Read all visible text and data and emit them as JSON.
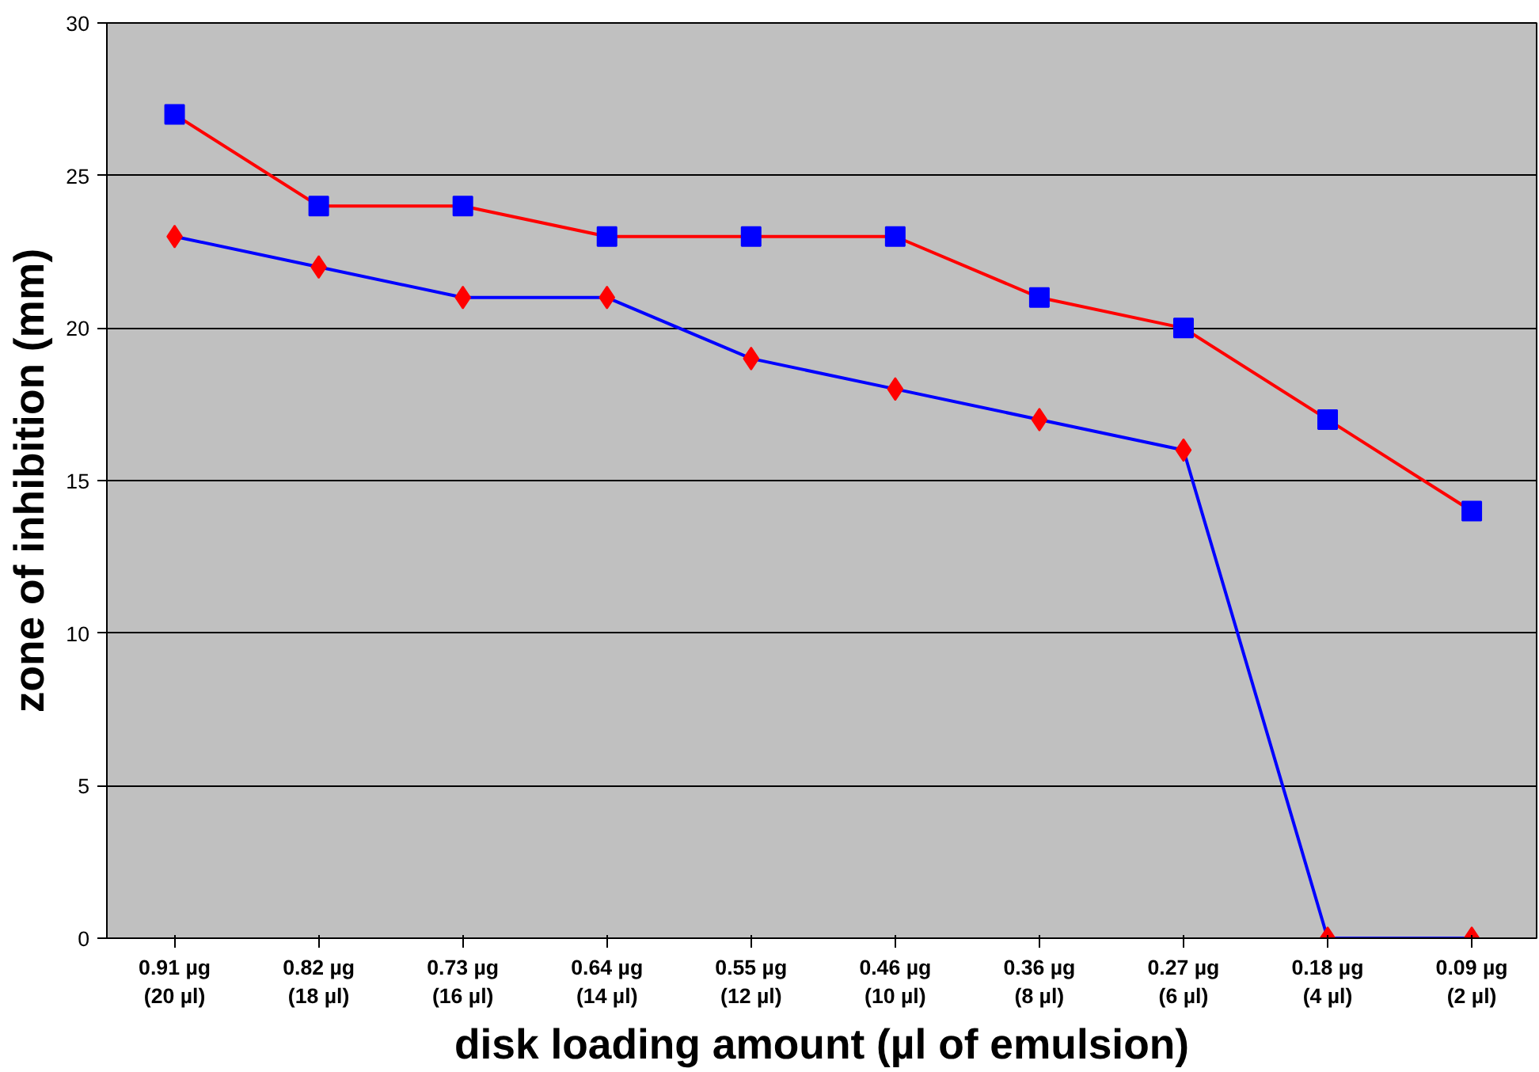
{
  "chart_data": {
    "type": "line",
    "xlabel": "disk loading amount (µl of emulsion)",
    "ylabel": "zone of inhibition (mm)",
    "categories": [
      "0.91 µg\n(20 µl)",
      "0.82 µg\n(18 µl)",
      "0.73 µg\n(16 µl)",
      "0.64 µg\n(14 µl)",
      "0.55 µg\n(12 µl)",
      "0.46 µg\n(10 µl)",
      "0.36 µg\n(8 µl)",
      "0.27 µg\n(6 µl)",
      "0.18 µg\n(4 µl)",
      "0.09 µg\n(2 µl)"
    ],
    "series": [
      {
        "color": "#ff0000",
        "marker": "square",
        "colors": [
          "#0000ff",
          "#0000ff",
          "#0000ff",
          "#0000ff",
          "#0000ff",
          "#0000ff",
          "#0000ff",
          "#0000ff",
          "#0000ff",
          "#0000ff"
        ],
        "values": [
          27,
          24,
          24,
          23,
          23,
          23,
          21,
          20,
          17,
          14
        ]
      },
      {
        "color": "#0000ff",
        "marker": "diamond",
        "colors": [
          "#ff0000",
          "#ff0000",
          "#ff0000",
          "#ff0000",
          "#ff0000",
          "#ff0000",
          "#ff0000",
          "#ff0000",
          "#ff0000",
          "#ff0000"
        ],
        "values": [
          23,
          22,
          21,
          21,
          19,
          18,
          17,
          16,
          0,
          0
        ]
      }
    ],
    "ylim": [
      0,
      30
    ],
    "yticks": [
      0,
      5,
      10,
      15,
      20,
      25,
      30
    ],
    "grid": "y"
  }
}
